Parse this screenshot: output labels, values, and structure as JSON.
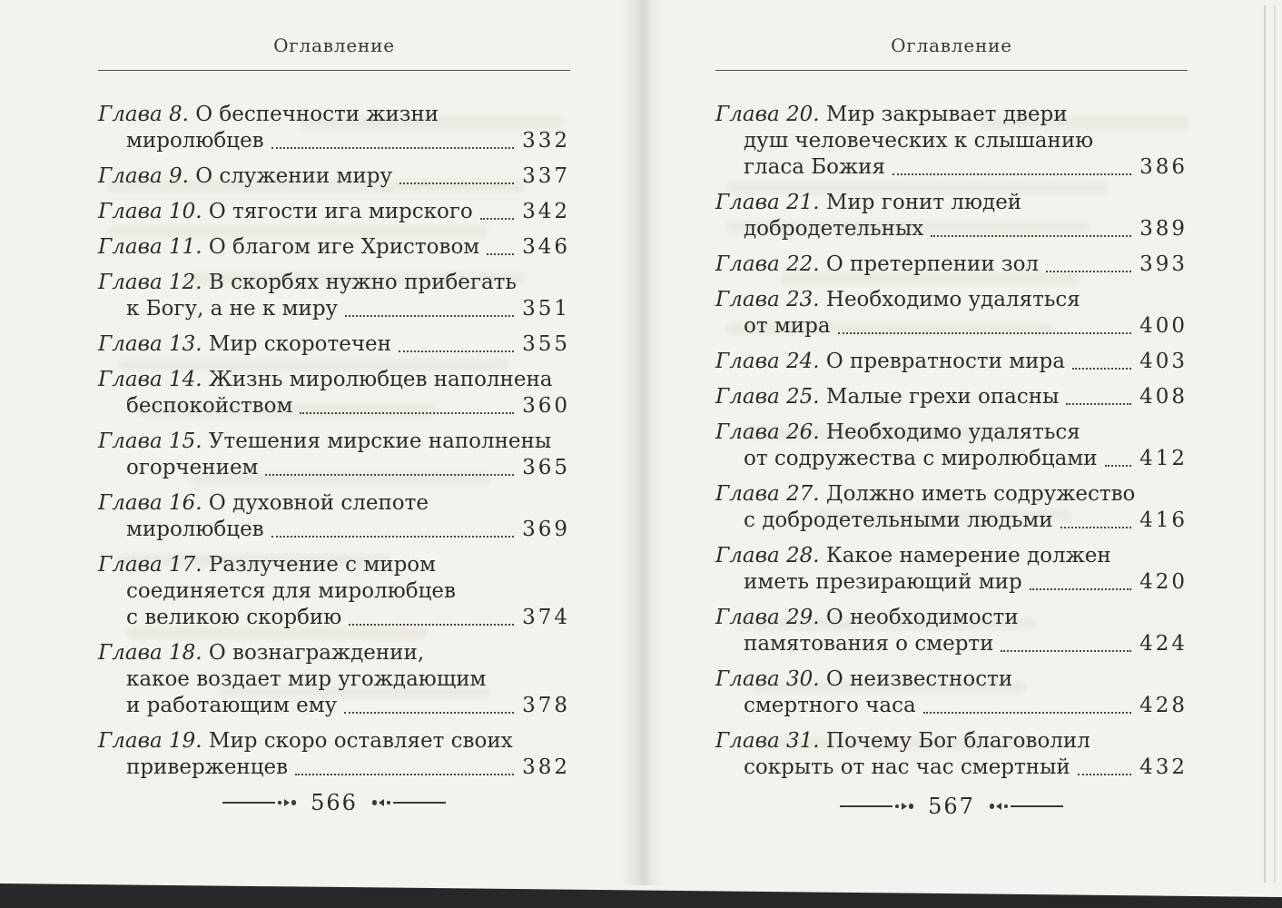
{
  "scan": {
    "paper_color": "#f4f2ee",
    "text_color": "#2e2b28",
    "edge_band_color": "#29272a"
  },
  "icons": {
    "folio_ornament_left": "long-dash-dot-arrowhead-right-dot",
    "folio_ornament_right": "dot-arrowhead-left-dot-long-dash"
  },
  "left_page": {
    "header": "Оглавление",
    "folio": "566",
    "entries": [
      {
        "chapter": "Глава 8.",
        "first": "О беспечности жизни",
        "cont": [
          "миролюбцев"
        ],
        "page": "332"
      },
      {
        "chapter": "Глава 9.",
        "first": "О служении миру",
        "cont": [],
        "page": "337"
      },
      {
        "chapter": "Глава 10.",
        "first": "О тягости ига мирского",
        "cont": [],
        "page": "342"
      },
      {
        "chapter": "Глава 11.",
        "first": "О благом иге Христовом",
        "cont": [],
        "page": "346"
      },
      {
        "chapter": "Глава 12.",
        "first": "В скорбях нужно прибегать",
        "cont": [
          "к Богу, а не к миру"
        ],
        "page": "351"
      },
      {
        "chapter": "Глава 13.",
        "first": "Мир скоротечен",
        "cont": [],
        "page": "355"
      },
      {
        "chapter": "Глава 14.",
        "first": "Жизнь миролюбцев наполнена",
        "cont": [
          "беспокойством"
        ],
        "page": "360"
      },
      {
        "chapter": "Глава 15.",
        "first": "Утешения мирские наполнены",
        "cont": [
          "огорчением"
        ],
        "page": "365"
      },
      {
        "chapter": "Глава 16.",
        "first": "О духовной слепоте",
        "cont": [
          "миролюбцев"
        ],
        "page": "369"
      },
      {
        "chapter": "Глава 17.",
        "first": "Разлучение с миром",
        "cont": [
          "соединяется для миролюбцев",
          "с великою скорбию"
        ],
        "page": "374"
      },
      {
        "chapter": "Глава 18.",
        "first": "О вознаграждении,",
        "cont": [
          "какое воздает мир угождающим",
          "и работающим ему"
        ],
        "page": "378"
      },
      {
        "chapter": "Глава 19.",
        "first": "Мир скоро оставляет своих",
        "cont": [
          "приверженцев"
        ],
        "page": "382"
      }
    ]
  },
  "right_page": {
    "header": "Оглавление",
    "folio": "567",
    "entries": [
      {
        "chapter": "Глава 20.",
        "first": "Мир закрывает двери",
        "cont": [
          "душ человеческих к слышанию",
          "гласа Божия"
        ],
        "page": "386"
      },
      {
        "chapter": "Глава 21.",
        "first": "Мир гонит людей",
        "cont": [
          "добродетельных"
        ],
        "page": "389"
      },
      {
        "chapter": "Глава 22.",
        "first": "О претерпении зол",
        "cont": [],
        "page": "393"
      },
      {
        "chapter": "Глава 23.",
        "first": "Необходимо удаляться",
        "cont": [
          "от мира"
        ],
        "page": "400"
      },
      {
        "chapter": "Глава 24.",
        "first": "О превратности мира",
        "cont": [],
        "page": "403"
      },
      {
        "chapter": "Глава 25.",
        "first": "Малые грехи опасны",
        "cont": [],
        "page": "408"
      },
      {
        "chapter": "Глава 26.",
        "first": "Необходимо удаляться",
        "cont": [
          "от содружества с миролюбцами"
        ],
        "page": "412"
      },
      {
        "chapter": "Глава 27.",
        "first": "Должно иметь содружество",
        "cont": [
          "с добродетельными людьми"
        ],
        "page": "416"
      },
      {
        "chapter": "Глава 28.",
        "first": "Какое намерение должен",
        "cont": [
          "иметь презирающий мир"
        ],
        "page": "420"
      },
      {
        "chapter": "Глава 29.",
        "first": "О необходимости",
        "cont": [
          "памятования о смерти"
        ],
        "page": "424"
      },
      {
        "chapter": "Глава 30.",
        "first": "О неизвестности",
        "cont": [
          "смертного часа"
        ],
        "page": "428"
      },
      {
        "chapter": "Глава 31.",
        "first": "Почему Бог благоволил",
        "cont": [
          "сокрыть от нас час смертный"
        ],
        "page": "432"
      }
    ]
  }
}
